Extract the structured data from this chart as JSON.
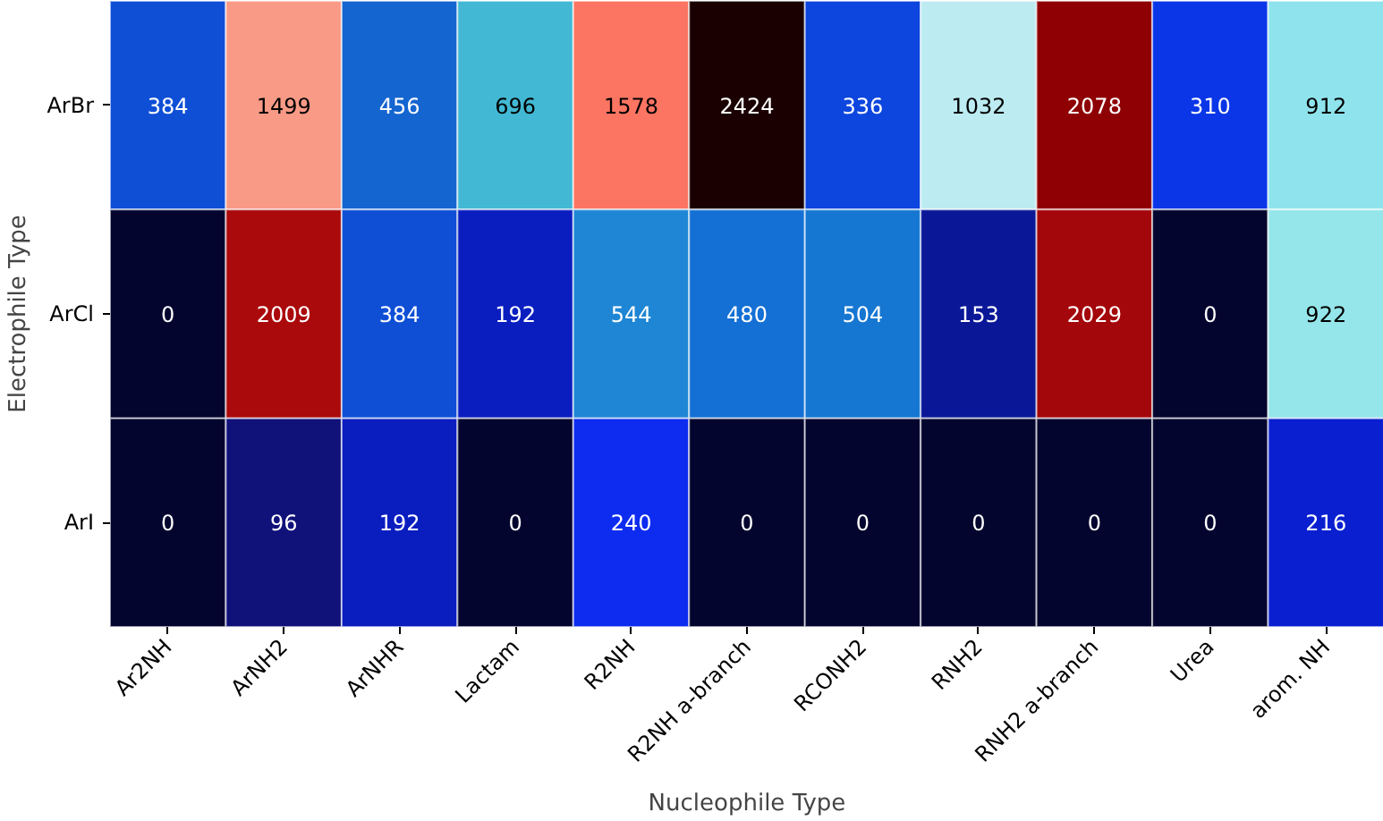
{
  "chart_data": {
    "type": "heatmap",
    "xlabel": "Nucleophile Type",
    "ylabel": "Electrophile Type",
    "categories": [
      "Ar2NH",
      "ArNH2",
      "ArNHR",
      "Lactam",
      "R2NH",
      "R2NH a-branch",
      "RCONH2",
      "RNH2",
      "RNH2 a-branch",
      "Urea",
      "arom. NH"
    ],
    "y_categories": [
      "ArBr",
      "ArCl",
      "ArI"
    ],
    "cells": [
      [
        384,
        1499,
        456,
        696,
        1578,
        2424,
        336,
        1032,
        2078,
        310,
        912
      ],
      [
        0,
        2009,
        384,
        192,
        544,
        480,
        504,
        153,
        2029,
        0,
        922
      ],
      [
        0,
        96,
        192,
        0,
        240,
        0,
        0,
        0,
        0,
        0,
        216
      ]
    ],
    "colors": [
      [
        "#0f4fd6",
        "#f99a86",
        "#1565d0",
        "#42b8d4",
        "#fb7562",
        "#1a0000",
        "#0d46de",
        "#bdebf2",
        "#8e0004",
        "#0a36e8",
        "#8fe3ec"
      ],
      [
        "#03052e",
        "#aa0a0c",
        "#0f4fd6",
        "#0a1ec0",
        "#1e86d4",
        "#1470d4",
        "#1677d2",
        "#0a1898",
        "#a4070b",
        "#03052e",
        "#95e6ea"
      ],
      [
        "#03052e",
        "#10127a",
        "#0a1ec0",
        "#03052e",
        "#0d2cf0",
        "#03052e",
        "#03052e",
        "#03052e",
        "#03052e",
        "#03052e",
        "#0a20d0"
      ]
    ],
    "data_labels": true
  }
}
